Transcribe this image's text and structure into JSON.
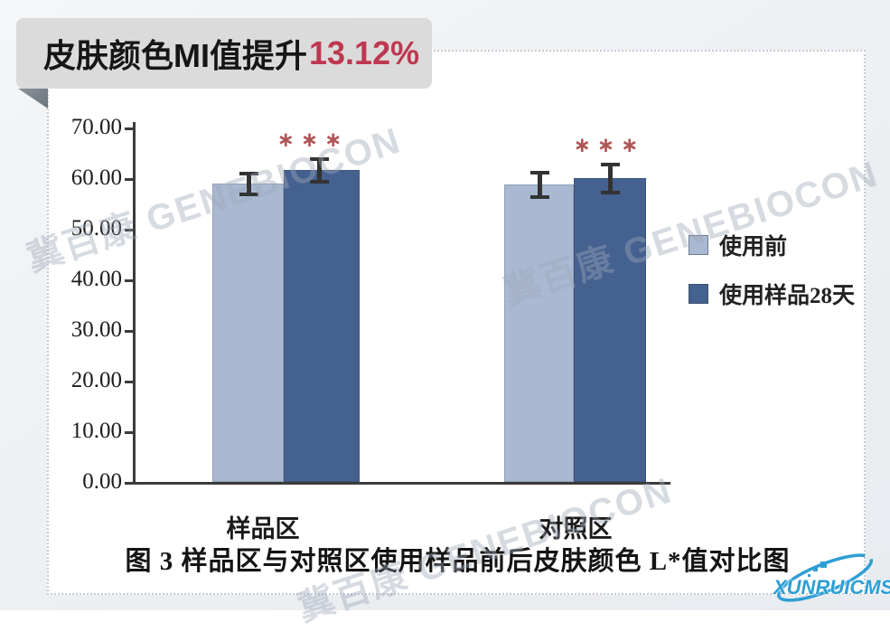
{
  "banner": {
    "title": "皮肤颜色MI值提升",
    "highlight": "13.12%"
  },
  "chart_data": {
    "type": "bar",
    "categories": [
      "样品区",
      "对照区"
    ],
    "series": [
      {
        "name": "使用前",
        "color": "#a9b9d2",
        "values": [
          58.9,
          58.7
        ],
        "errors": [
          2.3,
          2.7
        ]
      },
      {
        "name": "使用样品28天",
        "color": "#44618f",
        "values": [
          61.6,
          60.0
        ],
        "errors": [
          2.5,
          3.0
        ]
      }
    ],
    "significance": [
      "***",
      "***"
    ],
    "ylim": [
      0,
      70
    ],
    "ytick_step": 10,
    "ytick_labels": [
      "0.00",
      "10.00",
      "20.00",
      "30.00",
      "40.00",
      "50.00",
      "60.00",
      "70.00"
    ],
    "legend_position": "right",
    "grid": false,
    "error_bars": true,
    "caption": "图 3 样品区与对照区使用样品前后皮肤颜色 L*值对比图"
  },
  "watermark": {
    "text": "冀百康 GENEBIOCON"
  },
  "logo": {
    "text": "XUNRUICMS",
    "color": "#2e9fd4"
  },
  "colors": {
    "banner_bg": "#dbdbdb",
    "banner_highlight": "#bd3850",
    "bar_light": "#a9b9d2",
    "bar_dark": "#44618f",
    "axis": "#3b3b3b",
    "significance": "#b05555"
  }
}
